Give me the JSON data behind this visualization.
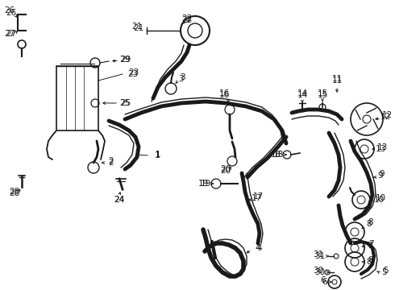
{
  "bg_color": "#ffffff",
  "line_color": "#1a1a1a",
  "font_size": 7.5,
  "figsize": [
    4.9,
    3.6
  ],
  "dpi": 100
}
